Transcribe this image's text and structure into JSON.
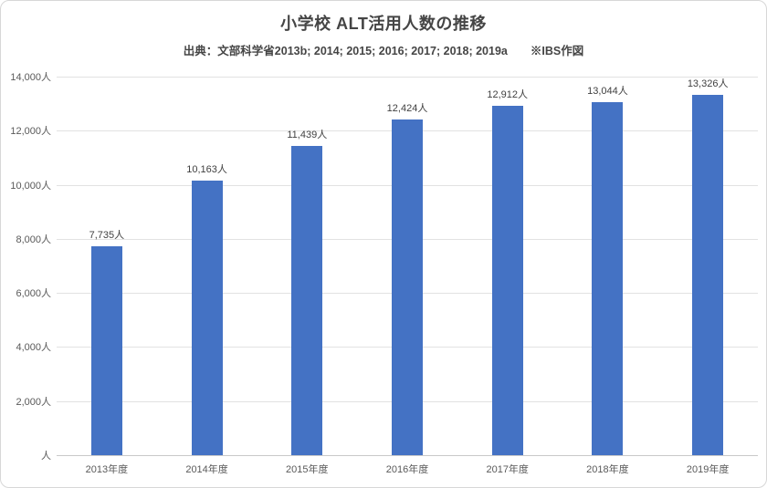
{
  "chart_data": {
    "type": "bar",
    "title": "小学校 ALT活用人数の推移",
    "subtitle": "出典：文部科学省2013b; 2014; 2015; 2016; 2017; 2018; 2019a　　※IBS作図",
    "categories": [
      "2013年度",
      "2014年度",
      "2015年度",
      "2016年度",
      "2017年度",
      "2018年度",
      "2019年度"
    ],
    "values": [
      7735,
      10163,
      11439,
      12424,
      12912,
      13044,
      13326
    ],
    "value_labels": [
      "7,735人",
      "10,163人",
      "11,439人",
      "12,424人",
      "12,912人",
      "13,044人",
      "13,326人"
    ],
    "y_ticks": [
      {
        "value": 0,
        "label": "人"
      },
      {
        "value": 2000,
        "label": "2,000人"
      },
      {
        "value": 4000,
        "label": "4,000人"
      },
      {
        "value": 6000,
        "label": "6,000人"
      },
      {
        "value": 8000,
        "label": "8,000人"
      },
      {
        "value": 10000,
        "label": "10,000人"
      },
      {
        "value": 12000,
        "label": "12,000人"
      },
      {
        "value": 14000,
        "label": "14,000人"
      }
    ],
    "ylim": [
      0,
      14000
    ],
    "xlabel": "",
    "ylabel": "",
    "unit": "人",
    "grid": true,
    "legend": false,
    "colors": {
      "bar": "#4472C4",
      "gridline": "#e2e2e2",
      "axis_line": "#c9c9c9",
      "title_text": "#454545",
      "tick_text": "#595959",
      "data_label_text": "#404040"
    }
  }
}
